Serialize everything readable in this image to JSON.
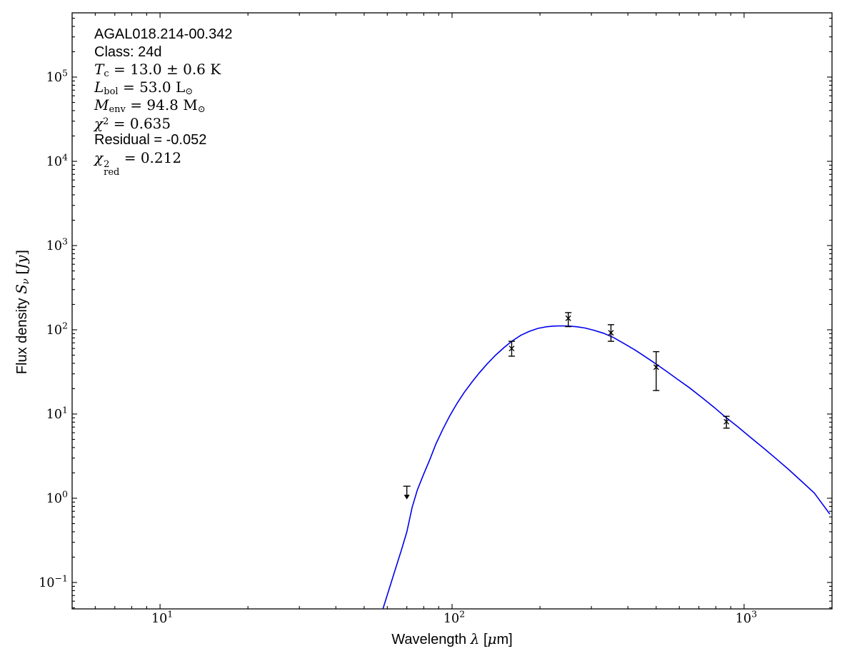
{
  "annotation": {
    "lines": [
      {
        "name": "source-name-line",
        "f": "sans",
        "segs": [
          {
            "t": "AGAL018.214-00.342"
          }
        ]
      },
      {
        "name": "class-line",
        "f": "sans",
        "segs": [
          {
            "t": "Class: 24d"
          }
        ]
      },
      {
        "name": "temperature-line",
        "f": "math",
        "segs": [
          {
            "t": "T",
            "it": true
          },
          {
            "t": "c",
            "sub": true
          },
          {
            "t": " = 13.0 ± 0.6 K"
          }
        ]
      },
      {
        "name": "luminosity-line",
        "f": "math",
        "segs": [
          {
            "t": "L",
            "it": true
          },
          {
            "t": "bol",
            "sub": true
          },
          {
            "t": " = 53.0 L"
          },
          {
            "t": "⊙",
            "sub": true
          }
        ]
      },
      {
        "name": "mass-line",
        "f": "math",
        "segs": [
          {
            "t": "M",
            "it": true
          },
          {
            "t": "env",
            "sub": true
          },
          {
            "t": " = 94.8 M"
          },
          {
            "t": "⊙",
            "sub": true
          }
        ]
      },
      {
        "name": "chi2-line",
        "f": "math",
        "segs": [
          {
            "t": "χ",
            "it": true
          },
          {
            "t": "2",
            "sup": true
          },
          {
            "t": " = 0.635"
          }
        ]
      },
      {
        "name": "residual-line",
        "f": "sans",
        "segs": [
          {
            "t": "Residual = -0.052"
          }
        ]
      },
      {
        "name": "chi2-red-line",
        "f": "math",
        "segs": [
          {
            "t": "χ",
            "it": true
          },
          {
            "stack": {
              "sup": "2",
              "sub": "red"
            }
          },
          {
            "t": " = 0.212"
          }
        ]
      }
    ]
  },
  "axis_labels": {
    "x_parts": [
      {
        "t": "Wavelength ",
        "f": "sans"
      },
      {
        "t": "λ",
        "f": "mathit"
      },
      {
        "t": " [",
        "f": "sans"
      },
      {
        "t": "μ",
        "f": "mathit"
      },
      {
        "t": "m]",
        "f": "sans"
      }
    ],
    "y_parts": [
      {
        "t": "Flux density ",
        "f": "sans"
      },
      {
        "t": "S",
        "f": "mathit"
      },
      {
        "t": "ν",
        "f": "mathit",
        "sub": true
      },
      {
        "t": " ",
        "f": "sans"
      },
      {
        "t": "[",
        "f": "mserif"
      },
      {
        "t": "Jy",
        "f": "mathit"
      },
      {
        "t": "]",
        "f": "mserif"
      }
    ]
  },
  "chart_data": {
    "type": "line",
    "title": "",
    "xlabel": "Wavelength λ [μm]",
    "ylabel": "Flux density S_ν [Jy]",
    "x_scale": "log",
    "y_scale": "log",
    "xlim": [
      5,
      2000
    ],
    "ylim": [
      0.049,
      580000
    ],
    "x_major_ticks": [
      10,
      100,
      1000
    ],
    "y_major_ticks": [
      100000,
      10000,
      1000,
      100,
      10,
      1,
      0.1
    ],
    "grid": false,
    "legend": false,
    "colors": {
      "curve": "#0000ee",
      "data": "#000000",
      "axes": "#000000"
    },
    "series": [
      {
        "name": "greybody-model-fit",
        "type": "line",
        "color": "#0000ee",
        "points": [
          [
            58,
            0.049
          ],
          [
            61,
            0.085
          ],
          [
            64,
            0.145
          ],
          [
            67,
            0.24
          ],
          [
            70,
            0.4
          ],
          [
            73,
            0.78
          ],
          [
            76,
            1.25
          ],
          [
            80,
            1.95
          ],
          [
            84,
            2.9
          ],
          [
            88,
            4.4
          ],
          [
            93,
            6.6
          ],
          [
            98,
            9.4
          ],
          [
            104,
            13.4
          ],
          [
            110,
            18
          ],
          [
            117,
            24
          ],
          [
            124,
            30.8
          ],
          [
            132,
            39.5
          ],
          [
            141,
            50
          ],
          [
            151,
            62
          ],
          [
            160,
            73
          ],
          [
            172,
            86
          ],
          [
            184,
            96
          ],
          [
            197,
            104
          ],
          [
            210,
            108.5
          ],
          [
            223,
            110.6
          ],
          [
            237,
            111.3
          ],
          [
            252,
            110.6
          ],
          [
            268,
            108.5
          ],
          [
            285,
            105
          ],
          [
            305,
            99
          ],
          [
            330,
            91
          ],
          [
            357,
            81
          ],
          [
            390,
            68
          ],
          [
            425,
            57
          ],
          [
            460,
            47.5
          ],
          [
            494,
            40.3
          ],
          [
            540,
            32.5
          ],
          [
            590,
            26
          ],
          [
            650,
            20.5
          ],
          [
            720,
            15.5
          ],
          [
            790,
            12
          ],
          [
            860,
            9.3
          ],
          [
            950,
            7.1
          ],
          [
            1050,
            5.3
          ],
          [
            1160,
            4.0
          ],
          [
            1280,
            3.0
          ],
          [
            1420,
            2.2
          ],
          [
            1570,
            1.6
          ],
          [
            1740,
            1.15
          ],
          [
            1965,
            0.65
          ]
        ]
      },
      {
        "name": "photometry",
        "type": "scatter",
        "marker": "x",
        "color": "#000000",
        "points": [
          {
            "wavelength_um": 160,
            "flux_jy": 60,
            "flux_lo_jy": 48.6,
            "flux_hi_jy": 73
          },
          {
            "wavelength_um": 250,
            "flux_jy": 137,
            "flux_lo_jy": 109,
            "flux_hi_jy": 160
          },
          {
            "wavelength_um": 350,
            "flux_jy": 92,
            "flux_lo_jy": 73,
            "flux_hi_jy": 115
          },
          {
            "wavelength_um": 500,
            "flux_jy": 36,
            "flux_lo_jy": 19,
            "flux_hi_jy": 55
          },
          {
            "wavelength_um": 870,
            "flux_jy": 8.1,
            "flux_lo_jy": 6.8,
            "flux_hi_jy": 9.4
          }
        ]
      },
      {
        "name": "upper-limit",
        "type": "upper_limit",
        "color": "#000000",
        "points": [
          {
            "wavelength_um": 70,
            "flux_jy": 1.39
          }
        ]
      }
    ],
    "fit_parameters": {
      "source": "AGAL018.214-00.342",
      "class": "24d",
      "T_c": "13.0 ± 0.6 K",
      "L_bol": "53.0 L⊙",
      "M_env": "94.8 M⊙",
      "chi2": 0.635,
      "residual": -0.052,
      "chi2_red": 0.212
    }
  }
}
